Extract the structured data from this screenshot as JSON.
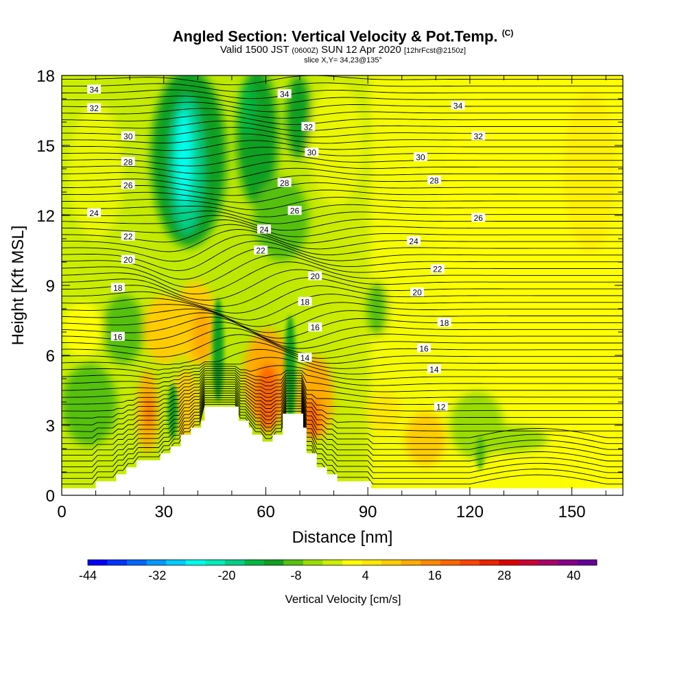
{
  "header": {
    "title_main": "Angled Section: Vertical Velocity & Pot.Temp.",
    "title_copyright": "(C)",
    "valid_prefix": "Valid 1500 JST",
    "valid_utc": "(0600Z)",
    "valid_date": "SUN 12 Apr 2020",
    "forecast_tag": "[12hrFcst@2150z]",
    "slice_text": "slice X,Y= 34,23@135°"
  },
  "chart_data": {
    "type": "heatmap",
    "title": "Angled Section: Vertical Velocity & Pot.Temp.",
    "xlabel": "Distance [nm]",
    "ylabel": "Height [Kft MSL]",
    "xlim": [
      0,
      165
    ],
    "ylim": [
      0,
      18
    ],
    "x_ticks": [
      0,
      30,
      60,
      90,
      120,
      150
    ],
    "y_ticks": [
      0,
      3,
      6,
      9,
      12,
      15,
      18
    ],
    "grid": false,
    "colorbar": {
      "label": "Vertical Velocity [cm/s]",
      "min": -44,
      "max": 44,
      "step": 4,
      "tick_values": [
        -44,
        -32,
        -20,
        -8,
        4,
        16,
        28,
        40
      ],
      "colors": [
        "#0000ff",
        "#0033ff",
        "#0066ff",
        "#0099ff",
        "#00ccff",
        "#00ffee",
        "#00eebb",
        "#00d088",
        "#00b840",
        "#10a020",
        "#55c010",
        "#99dd00",
        "#ccee00",
        "#ffff00",
        "#ffe800",
        "#ffcc00",
        "#ffaa00",
        "#ff8800",
        "#ff6600",
        "#ff4400",
        "#ee2200",
        "#dd0000",
        "#cc0033",
        "#aa0066",
        "#880088",
        "#660099"
      ]
    },
    "contour_labels": [
      {
        "text": "34",
        "x": 9.5,
        "y": 17.4
      },
      {
        "text": "32",
        "x": 9.5,
        "y": 16.6
      },
      {
        "text": "30",
        "x": 19.5,
        "y": 15.4
      },
      {
        "text": "28",
        "x": 19.5,
        "y": 14.3
      },
      {
        "text": "26",
        "x": 19.5,
        "y": 13.3
      },
      {
        "text": "24",
        "x": 9.5,
        "y": 12.1
      },
      {
        "text": "22",
        "x": 19.5,
        "y": 11.1
      },
      {
        "text": "20",
        "x": 19.5,
        "y": 10.1
      },
      {
        "text": "18",
        "x": 16.5,
        "y": 8.9
      },
      {
        "text": "16",
        "x": 16.5,
        "y": 6.8
      },
      {
        "text": "34",
        "x": 65.5,
        "y": 17.2
      },
      {
        "text": "32",
        "x": 72.5,
        "y": 15.8
      },
      {
        "text": "30",
        "x": 73.5,
        "y": 14.7
      },
      {
        "text": "28",
        "x": 65.5,
        "y": 13.4
      },
      {
        "text": "26",
        "x": 68.5,
        "y": 12.2
      },
      {
        "text": "24",
        "x": 59.5,
        "y": 11.4
      },
      {
        "text": "22",
        "x": 58.5,
        "y": 10.5
      },
      {
        "text": "20",
        "x": 74.5,
        "y": 9.4
      },
      {
        "text": "18",
        "x": 71.5,
        "y": 8.3
      },
      {
        "text": "16",
        "x": 74.5,
        "y": 7.2
      },
      {
        "text": "14",
        "x": 71.5,
        "y": 5.9
      },
      {
        "text": "34",
        "x": 116.5,
        "y": 16.7
      },
      {
        "text": "32",
        "x": 122.5,
        "y": 15.4
      },
      {
        "text": "30",
        "x": 105.5,
        "y": 14.5
      },
      {
        "text": "28",
        "x": 109.5,
        "y": 13.5
      },
      {
        "text": "26",
        "x": 122.5,
        "y": 11.9
      },
      {
        "text": "24",
        "x": 103.5,
        "y": 10.9
      },
      {
        "text": "22",
        "x": 110.5,
        "y": 9.7
      },
      {
        "text": "20",
        "x": 104.5,
        "y": 8.7
      },
      {
        "text": "18",
        "x": 112.5,
        "y": 7.4
      },
      {
        "text": "16",
        "x": 106.5,
        "y": 6.3
      },
      {
        "text": "14",
        "x": 109.5,
        "y": 5.4
      },
      {
        "text": "12",
        "x": 111.5,
        "y": 3.8
      }
    ],
    "terrain_profile": [
      [
        0,
        0.3
      ],
      [
        10,
        0.3
      ],
      [
        10,
        0.6
      ],
      [
        16,
        0.6
      ],
      [
        16,
        0.9
      ],
      [
        19,
        0.9
      ],
      [
        19,
        1.2
      ],
      [
        22,
        1.2
      ],
      [
        22,
        1.5
      ],
      [
        29,
        1.5
      ],
      [
        29,
        1.8
      ],
      [
        32,
        1.8
      ],
      [
        32,
        2.1
      ],
      [
        35,
        2.1
      ],
      [
        35,
        2.6
      ],
      [
        38,
        2.6
      ],
      [
        38,
        2.9
      ],
      [
        41,
        2.9
      ],
      [
        41,
        3.2
      ],
      [
        42,
        3.2
      ],
      [
        42,
        3.8
      ],
      [
        52,
        3.8
      ],
      [
        52,
        3.2
      ],
      [
        55,
        3.2
      ],
      [
        55,
        2.9
      ],
      [
        56,
        2.9
      ],
      [
        56,
        2.6
      ],
      [
        59,
        2.6
      ],
      [
        59,
        2.3
      ],
      [
        62,
        2.3
      ],
      [
        62,
        2.6
      ],
      [
        65,
        2.6
      ],
      [
        65,
        3.5
      ],
      [
        71,
        3.5
      ],
      [
        71,
        2.9
      ],
      [
        72,
        2.9
      ],
      [
        72,
        1.8
      ],
      [
        75,
        1.8
      ],
      [
        75,
        1.2
      ],
      [
        78,
        1.2
      ],
      [
        78,
        0.9
      ],
      [
        81,
        0.9
      ],
      [
        81,
        0.6
      ],
      [
        91,
        0.6
      ],
      [
        91,
        0.3
      ],
      [
        165,
        0.3
      ]
    ]
  }
}
